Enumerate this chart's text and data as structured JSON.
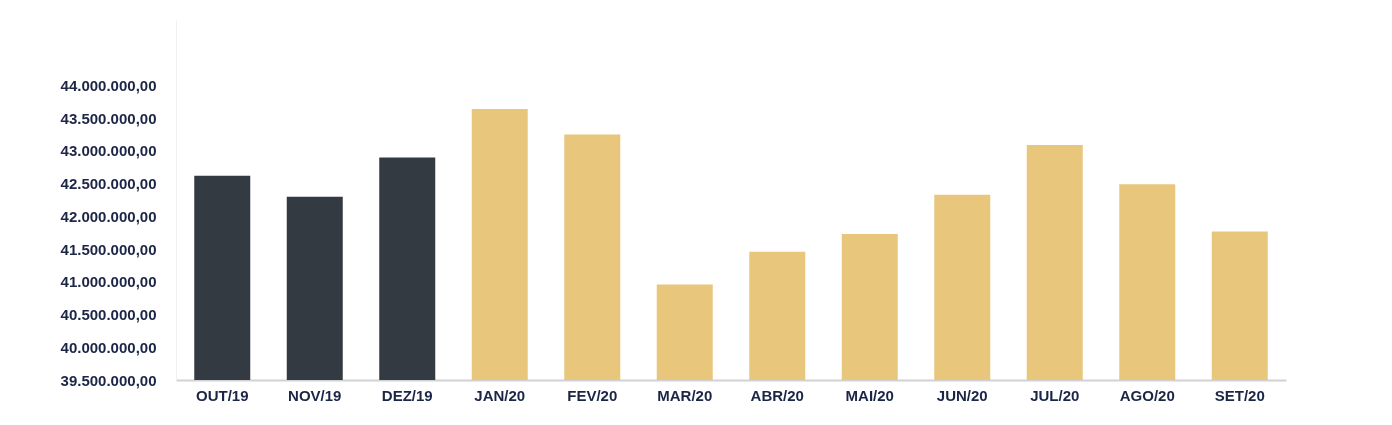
{
  "chart_data": {
    "type": "bar",
    "categories": [
      "OUT/19",
      "NOV/19",
      "DEZ/19",
      "JAN/20",
      "FEV/20",
      "MAR/20",
      "ABR/20",
      "MAI/20",
      "JUN/20",
      "JUL/20",
      "AGO/20",
      "SET/20"
    ],
    "values": [
      42620000,
      42300000,
      42900000,
      43640000,
      43250000,
      40960000,
      41460000,
      41730000,
      42330000,
      43090000,
      42490000,
      41770000
    ],
    "colors": [
      "#343a42",
      "#343a42",
      "#343a42",
      "#e8c77c",
      "#e8c77c",
      "#e8c77c",
      "#e8c77c",
      "#e8c77c",
      "#e8c77c",
      "#e8c77c",
      "#e8c77c",
      "#e8c77c"
    ],
    "ylim": [
      39500000,
      45000000
    ],
    "yticks": [
      {
        "value": 39500000,
        "label": "39.500.000,00"
      },
      {
        "value": 40000000,
        "label": "40.000.000,00"
      },
      {
        "value": 40500000,
        "label": "40.500.000,00"
      },
      {
        "value": 41000000,
        "label": "41.000.000,00"
      },
      {
        "value": 41500000,
        "label": "41.500.000,00"
      },
      {
        "value": 42000000,
        "label": "42.000.000,00"
      },
      {
        "value": 42500000,
        "label": "42.500.000,00"
      },
      {
        "value": 43000000,
        "label": "43.000.000,00"
      },
      {
        "value": 43500000,
        "label": "43.500.000,00"
      },
      {
        "value": 44000000,
        "label": "44.000.000,00"
      }
    ],
    "grid": false
  }
}
